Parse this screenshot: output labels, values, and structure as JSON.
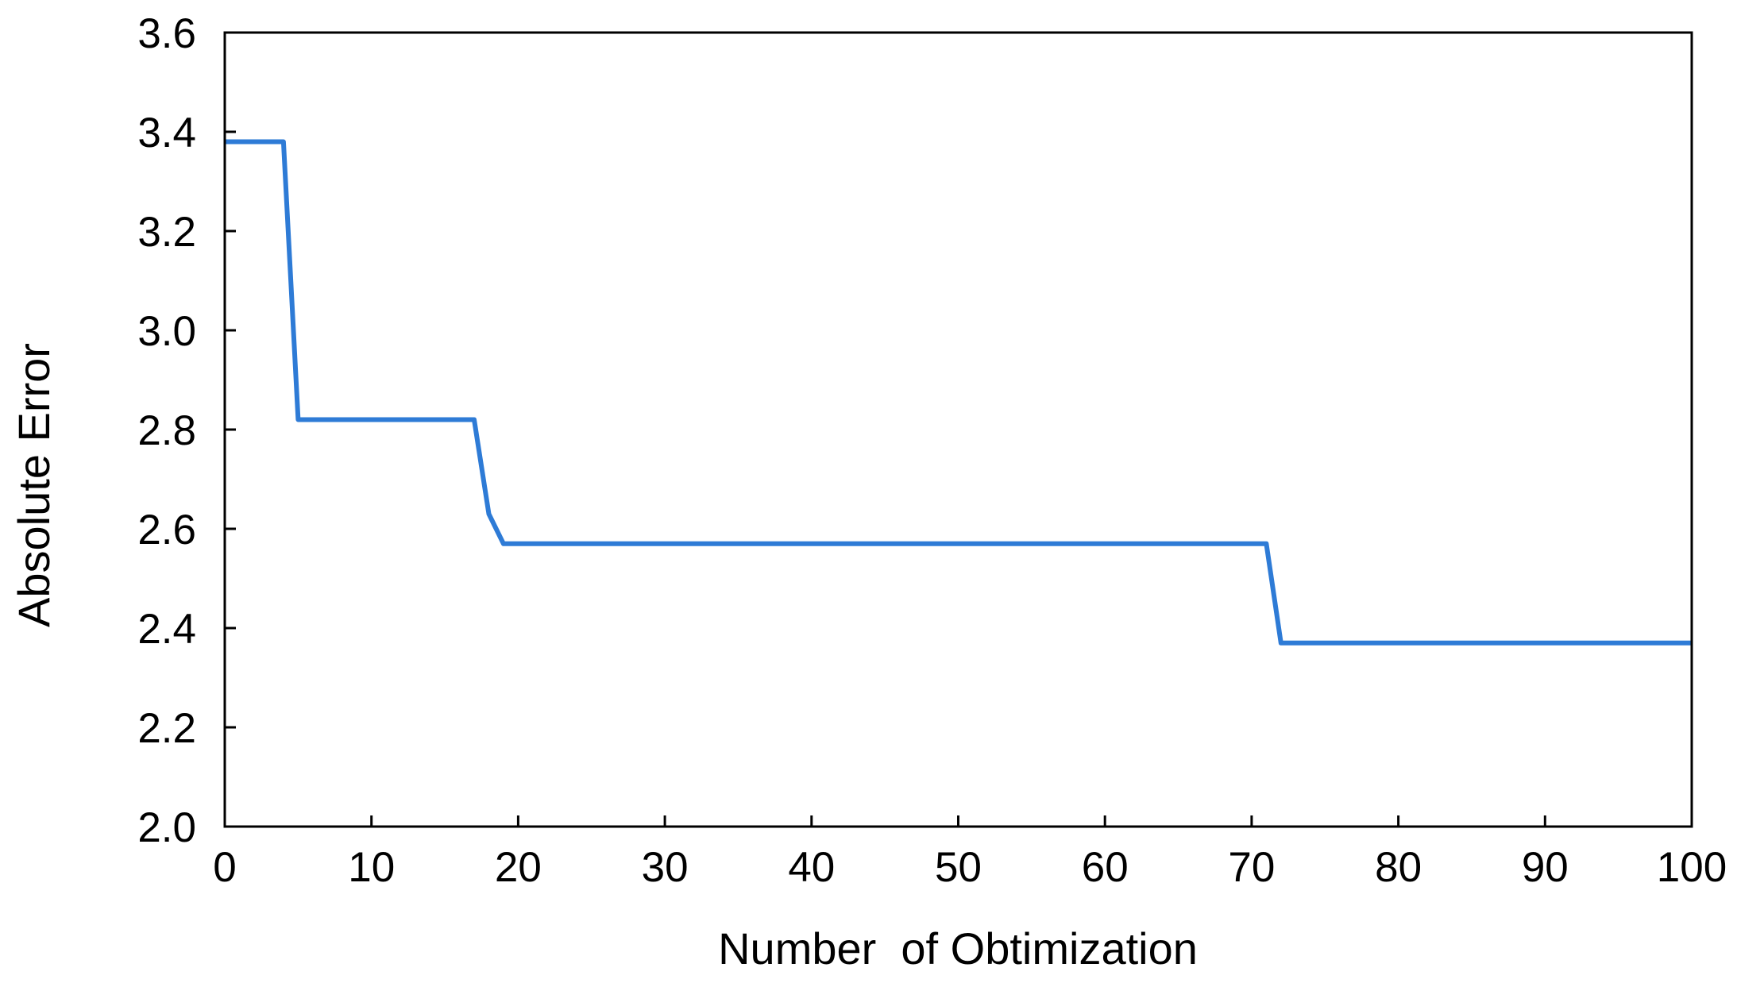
{
  "chart_data": {
    "type": "line",
    "title": "",
    "xlabel": "Number  of Obtimization",
    "ylabel": "Absolute Error",
    "xlim": [
      0,
      100
    ],
    "ylim": [
      2.0,
      3.6
    ],
    "xticks": [
      0,
      10,
      20,
      30,
      40,
      50,
      60,
      70,
      80,
      90,
      100
    ],
    "yticks": [
      2.0,
      2.2,
      2.4,
      2.6,
      2.8,
      3.0,
      3.2,
      3.4,
      3.6
    ],
    "xtick_labels": [
      "0",
      "10",
      "20",
      "30",
      "40",
      "50",
      "60",
      "70",
      "80",
      "90",
      "100"
    ],
    "ytick_labels": [
      "2.0",
      "2.2",
      "2.4",
      "2.6",
      "2.8",
      "3.0",
      "3.2",
      "3.4",
      "3.6"
    ],
    "grid": false,
    "legend": "none",
    "series": [
      {
        "color": "#2E7BD6",
        "x": [
          0,
          4,
          5,
          17,
          18,
          19,
          71,
          72,
          100
        ],
        "y": [
          3.38,
          3.38,
          2.82,
          2.82,
          2.63,
          2.57,
          2.57,
          2.37,
          2.37
        ]
      }
    ]
  }
}
